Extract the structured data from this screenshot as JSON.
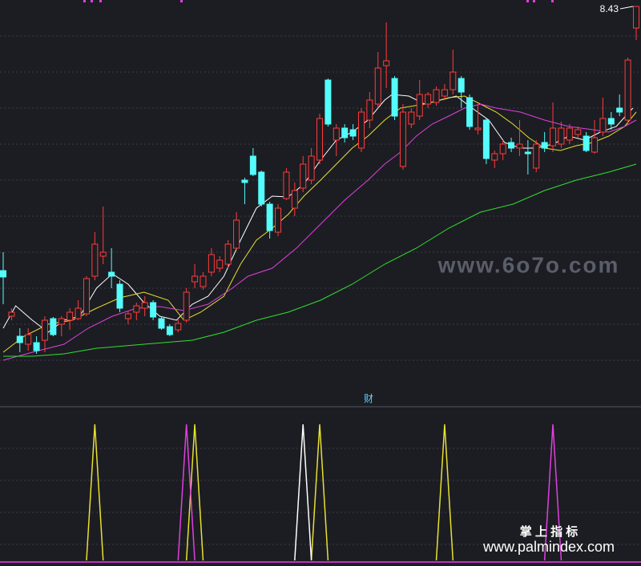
{
  "chart_data": {
    "type": "candlestick",
    "up_color": "#ff3c3c",
    "down_color": "#54fcfc",
    "xlim": [
      0,
      76
    ],
    "ylim": [
      3.61,
      8.51
    ],
    "max_label": 8.43,
    "ohlc": [
      [
        5.13,
        5.36,
        4.71,
        5.05
      ],
      [
        4.56,
        4.66,
        4.51,
        4.61
      ],
      [
        4.31,
        4.41,
        4.11,
        4.23
      ],
      [
        4.21,
        4.41,
        4.13,
        4.33
      ],
      [
        4.23,
        4.31,
        4.09,
        4.13
      ],
      [
        4.26,
        4.56,
        4.11,
        4.51
      ],
      [
        4.53,
        4.55,
        4.31,
        4.33
      ],
      [
        4.46,
        4.56,
        4.31,
        4.53
      ],
      [
        4.51,
        4.66,
        4.39,
        4.61
      ],
      [
        4.53,
        4.76,
        4.51,
        4.66
      ],
      [
        4.59,
        5.06,
        4.56,
        5.03
      ],
      [
        5.06,
        5.61,
        5.01,
        5.46
      ],
      [
        5.31,
        5.93,
        5.21,
        5.36
      ],
      [
        5.11,
        5.41,
        4.91,
        5.06
      ],
      [
        4.96,
        5.01,
        4.61,
        4.66
      ],
      [
        4.53,
        4.63,
        4.46,
        4.59
      ],
      [
        4.61,
        4.73,
        4.51,
        4.69
      ],
      [
        4.66,
        4.81,
        4.56,
        4.73
      ],
      [
        4.73,
        4.76,
        4.51,
        4.55
      ],
      [
        4.53,
        4.56,
        4.39,
        4.41
      ],
      [
        4.43,
        4.46,
        4.31,
        4.33
      ],
      [
        4.39,
        4.53,
        4.36,
        4.47
      ],
      [
        4.51,
        4.91,
        4.48,
        4.86
      ],
      [
        4.99,
        5.21,
        4.91,
        5.06
      ],
      [
        4.93,
        5.11,
        4.89,
        5.06
      ],
      [
        5.11,
        5.41,
        5.06,
        5.33
      ],
      [
        5.16,
        5.31,
        5.11,
        5.26
      ],
      [
        5.21,
        5.51,
        5.16,
        5.46
      ],
      [
        5.41,
        5.86,
        5.39,
        5.76
      ],
      [
        6.26,
        6.29,
        5.96,
        6.23
      ],
      [
        6.56,
        6.66,
        6.31,
        6.33
      ],
      [
        6.36,
        6.38,
        5.93,
        5.96
      ],
      [
        5.96,
        5.99,
        5.53,
        5.63
      ],
      [
        5.61,
        5.96,
        5.56,
        5.91
      ],
      [
        6.03,
        6.41,
        6.01,
        6.36
      ],
      [
        5.91,
        6.23,
        5.81,
        6.13
      ],
      [
        6.16,
        6.56,
        6.11,
        6.46
      ],
      [
        6.26,
        6.66,
        6.21,
        6.56
      ],
      [
        6.51,
        7.09,
        6.46,
        7.03
      ],
      [
        7.51,
        7.53,
        6.93,
        6.96
      ],
      [
        6.76,
        6.96,
        6.56,
        6.91
      ],
      [
        6.91,
        6.96,
        6.73,
        6.79
      ],
      [
        6.89,
        6.96,
        6.76,
        6.81
      ],
      [
        6.66,
        7.16,
        6.61,
        7.11
      ],
      [
        7.01,
        7.36,
        6.91,
        7.26
      ],
      [
        7.21,
        7.86,
        7.16,
        7.66
      ],
      [
        7.69,
        8.23,
        7.41,
        7.75
      ],
      [
        7.53,
        7.56,
        7.01,
        7.06
      ],
      [
        6.43,
        7.21,
        6.39,
        7.11
      ],
      [
        6.96,
        7.16,
        6.91,
        7.11
      ],
      [
        7.06,
        7.51,
        7.01,
        7.33
      ],
      [
        7.21,
        7.36,
        7.16,
        7.33
      ],
      [
        7.23,
        7.43,
        7.19,
        7.39
      ],
      [
        7.31,
        7.46,
        7.26,
        7.39
      ],
      [
        7.39,
        7.89,
        7.33,
        7.61
      ],
      [
        7.53,
        7.56,
        7.16,
        7.36
      ],
      [
        7.29,
        7.33,
        6.89,
        6.93
      ],
      [
        6.89,
        7.21,
        6.83,
        6.91
      ],
      [
        7.01,
        7.03,
        6.46,
        6.53
      ],
      [
        6.51,
        6.63,
        6.41,
        6.59
      ],
      [
        6.59,
        6.76,
        6.51,
        6.71
      ],
      [
        6.73,
        6.79,
        6.61,
        6.66
      ],
      [
        6.66,
        7.01,
        6.56,
        6.71
      ],
      [
        6.61,
        6.76,
        6.33,
        6.59
      ],
      [
        6.41,
        6.76,
        6.36,
        6.71
      ],
      [
        6.73,
        6.86,
        6.61,
        6.66
      ],
      [
        6.69,
        7.23,
        6.61,
        6.91
      ],
      [
        6.71,
        6.99,
        6.66,
        6.91
      ],
      [
        6.76,
        6.96,
        6.71,
        6.91
      ],
      [
        6.83,
        6.93,
        6.79,
        6.89
      ],
      [
        6.81,
        6.86,
        6.61,
        6.63
      ],
      [
        6.61,
        7.01,
        6.59,
        6.79
      ],
      [
        6.86,
        7.29,
        6.81,
        7.03
      ],
      [
        7.03,
        7.11,
        6.89,
        6.96
      ],
      [
        7.16,
        7.33,
        7.06,
        7.11
      ],
      [
        7.01,
        7.79,
        6.96,
        7.76
      ],
      [
        8.16,
        8.43,
        8.01,
        8.43
      ]
    ],
    "lines": [
      {
        "color": "#ffffff",
        "x": [
          0,
          1.5,
          3.5,
          5.4,
          7.3,
          9.2,
          11.2,
          13.1,
          15,
          16.9,
          18.8,
          20.8,
          22.7,
          24.6,
          26.5,
          28.5,
          30.4,
          32.3,
          34.2,
          36.1,
          38.1,
          40,
          41.9,
          43.8,
          45.8,
          46.7,
          48.7,
          50.6,
          52.5,
          54.4,
          56.3,
          58.3,
          60.2,
          62.1,
          64,
          66,
          67.9,
          69.8,
          71.7,
          73.6,
          75.6
        ],
        "values": [
          4.41,
          4.69,
          4.51,
          4.36,
          4.51,
          4.56,
          4.91,
          5.09,
          4.96,
          4.73,
          4.56,
          4.51,
          4.71,
          4.81,
          5.06,
          5.51,
          5.91,
          6.06,
          6.05,
          6.21,
          6.51,
          6.76,
          6.86,
          7.01,
          7.26,
          7.33,
          7.31,
          7.21,
          7.26,
          7.31,
          7.16,
          7.01,
          6.73,
          6.66,
          6.66,
          6.71,
          6.81,
          6.76,
          6.86,
          6.93,
          7.16
        ]
      },
      {
        "color": "#e8e030",
        "x": [
          0,
          2.5,
          5.4,
          8.3,
          11.2,
          14,
          16.9,
          19.8,
          21.7,
          23.7,
          26.5,
          28.5,
          30.4,
          32.3,
          34.2,
          36.1,
          38.1,
          40,
          41.9,
          43.8,
          45.8,
          47.7,
          50.6,
          53.5,
          55.4,
          57.3,
          59.2,
          61.2,
          63.1,
          65,
          66.9,
          68.8,
          70.8,
          72.7,
          74.6,
          76
        ],
        "values": [
          4.11,
          4.31,
          4.46,
          4.51,
          4.66,
          4.79,
          4.86,
          4.76,
          4.51,
          4.61,
          4.81,
          5.21,
          5.51,
          5.66,
          5.83,
          6.06,
          6.26,
          6.46,
          6.66,
          6.81,
          7.01,
          7.16,
          7.21,
          7.29,
          7.31,
          7.21,
          7.11,
          6.96,
          6.79,
          6.66,
          6.63,
          6.69,
          6.73,
          6.81,
          6.93,
          7.11
        ]
      },
      {
        "color": "#e040e0",
        "x": [
          0,
          3.5,
          7.3,
          10.2,
          13.1,
          16,
          18.8,
          21.7,
          24.6,
          27.5,
          29.4,
          32.3,
          35.2,
          38.1,
          41,
          43.8,
          45.8,
          47.7,
          49.6,
          51.5,
          53.5,
          55.4,
          57.3,
          59.2,
          62.1,
          65,
          67.9,
          70.8,
          72.7,
          74.6,
          76
        ],
        "values": [
          4.01,
          4.11,
          4.21,
          4.41,
          4.56,
          4.66,
          4.68,
          4.63,
          4.71,
          4.91,
          5.06,
          5.16,
          5.41,
          5.71,
          6.01,
          6.26,
          6.46,
          6.61,
          6.81,
          6.96,
          7.06,
          7.16,
          7.21,
          7.16,
          7.11,
          7.01,
          6.93,
          6.89,
          6.86,
          6.93,
          7.01
        ]
      },
      {
        "color": "#30e030",
        "x": [
          0,
          3.5,
          7.3,
          11.2,
          16.9,
          22.7,
          26.5,
          30.4,
          34.2,
          38.1,
          41.9,
          45.8,
          49.6,
          53.5,
          57.3,
          61.2,
          65,
          68.8,
          72.7,
          76
        ],
        "values": [
          4.06,
          4.06,
          4.09,
          4.16,
          4.21,
          4.26,
          4.36,
          4.51,
          4.61,
          4.76,
          4.96,
          5.21,
          5.41,
          5.66,
          5.86,
          5.96,
          6.13,
          6.26,
          6.36,
          6.46
        ]
      }
    ],
    "panel_label": "财",
    "indicator": {
      "ylim": [
        0,
        1
      ],
      "series": [
        {
          "color": "#e8e030",
          "x": [
            11,
            23,
            38,
            53
          ],
          "values": [
            1,
            1,
            1,
            1
          ]
        },
        {
          "color": "#e040e0",
          "x": [
            22,
            66
          ],
          "values": [
            1,
            1
          ]
        },
        {
          "color": "#ffffff",
          "x": [
            36
          ],
          "values": [
            1
          ]
        }
      ]
    }
  },
  "watermarks": [
    "www.6o7o.com",
    "掌 上 指 标",
    "www.palmindex.com"
  ]
}
